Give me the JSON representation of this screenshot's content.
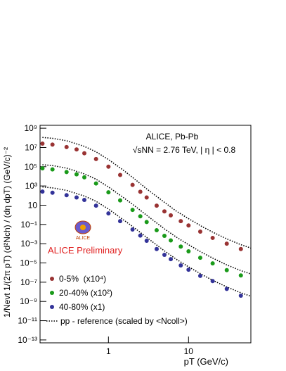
{
  "chart_data": {
    "type": "scatter",
    "log_x": true,
    "log_y": true,
    "xlim": [
      0.14,
      60
    ],
    "ylim": [
      5e-14,
      2000000000.0
    ],
    "xticks": [
      1,
      10
    ],
    "yticks": [
      {
        "value": 1000000000.0,
        "label": "10⁹"
      },
      {
        "value": 10000000.0,
        "label": "10⁷"
      },
      {
        "value": 100000.0,
        "label": "10⁵"
      },
      {
        "value": 1000.0,
        "label": "10³"
      },
      10,
      {
        "value": 0.1,
        "label": "10⁻¹"
      },
      {
        "value": 0.001,
        "label": "10⁻³"
      },
      {
        "value": 1e-05,
        "label": "10⁻⁵"
      },
      {
        "value": 1e-07,
        "label": "10⁻⁷"
      },
      {
        "value": 1e-09,
        "label": "10⁻⁹"
      },
      {
        "value": 1e-11,
        "label": "10⁻¹¹"
      },
      {
        "value": 1e-13,
        "label": "10⁻¹³"
      }
    ],
    "x_label": "pT (GeV/c)",
    "y_label": "1/Nevt 1/(2π pT) (d²Nch) / (dη dpT) (GeV/c)⁻²",
    "annotations": [
      "ALICE, Pb-Pb",
      "√sNN = 2.76 TeV, | η | < 0.8"
    ],
    "preliminary": "ALICE Preliminary",
    "logo_text": "ALICE",
    "x": [
      0.15,
      0.2,
      0.3,
      0.4,
      0.5,
      0.7,
      1,
      1.4,
      2,
      2.5,
      3,
      4,
      5,
      6,
      8,
      10,
      14,
      20,
      30,
      45
    ],
    "series": [
      {
        "name": "0-5%  (x10⁴)",
        "color": "#993333",
        "values": [
          25000000.0,
          20000000.0,
          11000000.0,
          6300000.0,
          2500000.0,
          630000.0,
          100000.0,
          14000.0,
          1300.0,
          250,
          63,
          8.9,
          2.3,
          0.89,
          0.22,
          0.079,
          0.018,
          0.004,
          0.001,
          0.00028
        ]
      },
      {
        "name": "20-40% (x10²)",
        "color": "#1a9a1a",
        "values": [
          68000.0,
          52000.0,
          28000.0,
          16000.0,
          7900.0,
          1800.0,
          220,
          32,
          3.3,
          0.7,
          0.18,
          0.025,
          0.0066,
          0.0022,
          0.0005,
          0.00016,
          3.5e-05,
          9.1e-06,
          1.8e-06,
          5e-07
        ]
      },
      {
        "name": "40-80% (x1)",
        "color": "#333399",
        "values": [
          260,
          200,
          110,
          63,
          35,
          8.9,
          1.4,
          0.22,
          0.03,
          0.007,
          0.002,
          0.00028,
          6.9e-05,
          2.5e-05,
          5.6e-06,
          2e-06,
          4.5e-07,
          1.3e-07,
          2e-08,
          4e-09
        ]
      }
    ],
    "reference": {
      "name": "pp - reference (scaled by <Ncoll>)",
      "color": "#000000",
      "x": [
        0.15,
        0.2,
        0.3,
        0.5,
        0.7,
        1,
        1.5,
        2,
        3,
        5,
        7,
        10,
        15,
        20,
        30,
        45,
        60
      ],
      "curves": [
        [
          110000000.0,
          89000000.0,
          50000000.0,
          13000000.0,
          3500000.0,
          560000.0,
          50000.0,
          7900.0,
          500,
          20,
          2.5,
          0.4,
          0.056,
          0.016,
          0.0032,
          0.00079,
          0.00035
        ],
        [
          160000.0,
          130000.0,
          71000.0,
          18000.0,
          5000.0,
          790,
          71,
          12.6,
          0.89,
          0.035,
          0.005,
          0.00079,
          0.00011,
          3.2e-05,
          6.3e-06,
          1.6e-06,
          7.1e-07
        ],
        [
          790,
          630,
          350,
          89,
          25,
          4,
          0.35,
          0.063,
          0.0045,
          0.00018,
          2.5e-05,
          4e-06,
          5.6e-07,
          1.6e-07,
          3.2e-08,
          7.9e-09,
          3.5e-09
        ]
      ]
    }
  }
}
